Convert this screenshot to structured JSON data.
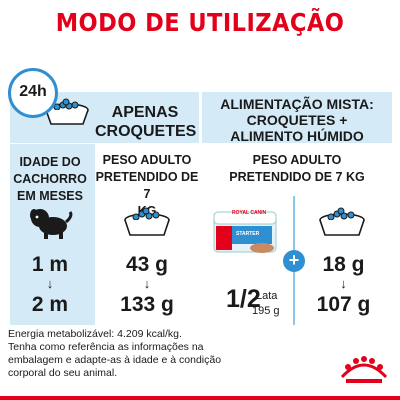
{
  "title": "MODO DE UTILIZAÇÃO",
  "clock": {
    "label": "24h",
    "icon": "clock-icon"
  },
  "col_apenas": {
    "header": [
      "APENAS",
      "CROQUETES"
    ]
  },
  "col_mista": {
    "header": [
      "ALIMENTAÇÃO MISTA:",
      "CROQUETES +",
      "ALIMENTO HÚMIDO"
    ]
  },
  "age_col": {
    "header": [
      "IDADE DO",
      "CACHORRO",
      "EM MESES"
    ]
  },
  "weight_header_left": [
    "PESO ADULTO",
    "PRETENDIDO DE 7",
    "KG"
  ],
  "weight_header_right": [
    "PESO ADULTO",
    "PRETENDIDO DE 7 KG"
  ],
  "rows": [
    {
      "age": "1 m",
      "dry_only": "43 g",
      "wet": "",
      "dry_mixed": "18 g"
    },
    {
      "age": "2 m",
      "dry_only": "133 g",
      "wet": "",
      "dry_mixed": "107 g"
    }
  ],
  "wet_portion": {
    "fraction": "1/2",
    "unit": "Lata",
    "weight": "195 g"
  },
  "can_label": {
    "brand": "ROYAL CANIN",
    "product": "STARTER"
  },
  "note": [
    "Energia metabolizável: 4.209 kcal/kg.",
    "Tenha como referência as informações na",
    "embalagem e adapte-as à idade e à condição",
    "corporal do seu animal."
  ],
  "colors": {
    "brand_red": "#e2001a",
    "panel_blue": "#d4ebf7",
    "accent_blue": "#2f8fd1"
  },
  "icons": [
    "clock-icon",
    "kibble-bowl-icon",
    "puppy-icon",
    "wet-food-can-icon",
    "plus-icon",
    "arrow-down-icon",
    "royal-canin-logo"
  ]
}
